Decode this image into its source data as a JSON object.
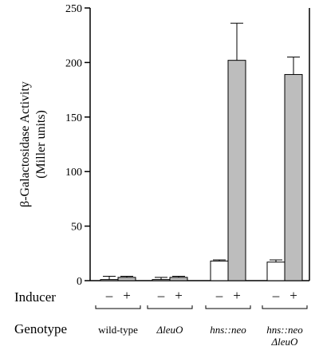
{
  "chart_data": {
    "type": "bar",
    "ylabel_line1": "β-Galactosidase Activity",
    "ylabel_line2": "(Miller units)",
    "ylim": [
      0,
      250
    ],
    "yticks": [
      0,
      50,
      100,
      150,
      200,
      250
    ],
    "grid": false,
    "colors": {
      "minus": "#ffffff",
      "plus": "#bdbdbd",
      "stroke": "#000000"
    },
    "inducer_label": "Inducer",
    "genotype_label": "Genotype",
    "groups": [
      {
        "genotype": [
          "wild-type"
        ],
        "italic": false,
        "minus_label": "–",
        "plus_label": "+",
        "values": [
          1,
          3
        ],
        "errors": [
          3,
          1
        ]
      },
      {
        "genotype": [
          "ΔleuO"
        ],
        "italic": true,
        "minus_label": "–",
        "plus_label": "+",
        "values": [
          1,
          3
        ],
        "errors": [
          2,
          1
        ]
      },
      {
        "genotype": [
          "hns::neo"
        ],
        "italic": true,
        "minus_label": "–",
        "plus_label": "+",
        "values": [
          18,
          202
        ],
        "errors": [
          1,
          34
        ]
      },
      {
        "genotype": [
          "hns::neo",
          "ΔleuO"
        ],
        "italic": true,
        "minus_label": "–",
        "plus_label": "+",
        "values": [
          17,
          189
        ],
        "errors": [
          2,
          16
        ]
      }
    ]
  }
}
